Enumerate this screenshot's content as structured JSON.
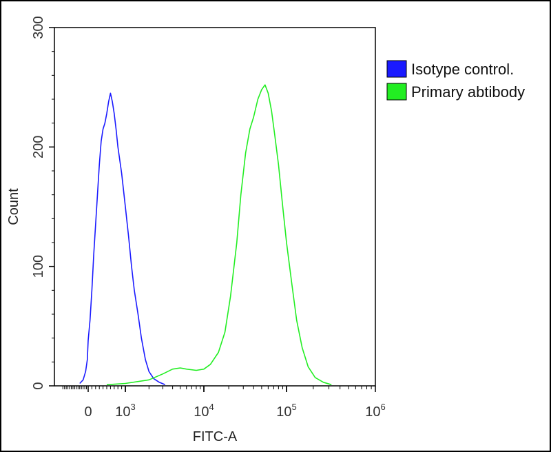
{
  "chart_data": {
    "type": "line",
    "title": "",
    "xlabel": "FITC-A",
    "ylabel": "Count",
    "ylim": [
      0,
      300
    ],
    "y_ticks": [
      "0",
      "100",
      "200",
      "300"
    ],
    "x_scale": "biexponential",
    "x_ticks": [
      {
        "base": "0",
        "exp": ""
      },
      {
        "base": "10",
        "exp": "3"
      },
      {
        "base": "10",
        "exp": "4"
      },
      {
        "base": "10",
        "exp": "5"
      },
      {
        "base": "10",
        "exp": "6"
      }
    ],
    "grid": false,
    "legend_position": "right",
    "series": [
      {
        "name": "Isotype control.",
        "color": "#1a1aff",
        "points": [
          [
            -500,
            2
          ],
          [
            -300,
            5
          ],
          [
            -150,
            12
          ],
          [
            -50,
            22
          ],
          [
            0,
            38
          ],
          [
            50,
            55
          ],
          [
            100,
            80
          ],
          [
            150,
            110
          ],
          [
            200,
            135
          ],
          [
            250,
            160
          ],
          [
            300,
            185
          ],
          [
            350,
            205
          ],
          [
            400,
            215
          ],
          [
            450,
            220
          ],
          [
            500,
            228
          ],
          [
            550,
            238
          ],
          [
            600,
            245
          ],
          [
            650,
            238
          ],
          [
            700,
            228
          ],
          [
            750,
            215
          ],
          [
            800,
            200
          ],
          [
            900,
            178
          ],
          [
            1000,
            150
          ],
          [
            1100,
            125
          ],
          [
            1200,
            100
          ],
          [
            1300,
            80
          ],
          [
            1450,
            60
          ],
          [
            1600,
            40
          ],
          [
            1800,
            22
          ],
          [
            2000,
            12
          ],
          [
            2300,
            6
          ],
          [
            2700,
            3
          ],
          [
            3200,
            1
          ]
        ]
      },
      {
        "name": "Primary abtibody",
        "color": "#22ee22",
        "points": [
          [
            500,
            1
          ],
          [
            1000,
            2
          ],
          [
            2000,
            5
          ],
          [
            3000,
            10
          ],
          [
            4000,
            14
          ],
          [
            5000,
            15
          ],
          [
            6000,
            14
          ],
          [
            8000,
            13
          ],
          [
            10000,
            14
          ],
          [
            12000,
            18
          ],
          [
            15000,
            28
          ],
          [
            18000,
            45
          ],
          [
            21000,
            75
          ],
          [
            25000,
            120
          ],
          [
            28000,
            160
          ],
          [
            32000,
            195
          ],
          [
            36000,
            215
          ],
          [
            40000,
            225
          ],
          [
            45000,
            240
          ],
          [
            50000,
            248
          ],
          [
            55000,
            252
          ],
          [
            60000,
            245
          ],
          [
            66000,
            230
          ],
          [
            72000,
            210
          ],
          [
            80000,
            185
          ],
          [
            90000,
            150
          ],
          [
            100000,
            120
          ],
          [
            115000,
            85
          ],
          [
            130000,
            55
          ],
          [
            150000,
            32
          ],
          [
            175000,
            16
          ],
          [
            210000,
            7
          ],
          [
            260000,
            3
          ],
          [
            320000,
            1
          ]
        ]
      }
    ]
  }
}
